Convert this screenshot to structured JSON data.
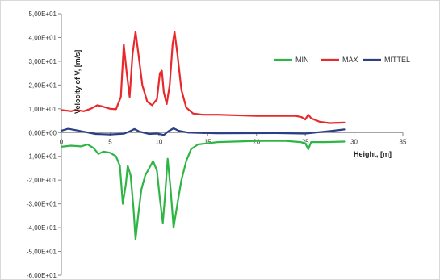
{
  "chart_data": {
    "type": "line",
    "title": "",
    "xlabel": "Height, [m]",
    "ylabel": "Velocity of V, [m/s]",
    "xlim": [
      0,
      35
    ],
    "ylim": [
      -60,
      50
    ],
    "x_ticks": [
      0,
      5,
      10,
      15,
      20,
      25,
      30,
      35
    ],
    "x_tick_labels": [
      "0",
      "5",
      "10",
      "15",
      "20",
      "25",
      "30",
      "35"
    ],
    "y_ticks": [
      50,
      40,
      30,
      20,
      10,
      0,
      -10,
      -20,
      -30,
      -40,
      -50,
      -60
    ],
    "y_tick_labels": [
      "5,00E+01",
      "4,00E+01",
      "3,00E+01",
      "2,00E+01",
      "1,00E+01",
      "0,00E+00",
      "-1,00E+01",
      "-2,00E+01",
      "-3,00E+01",
      "-4,00E+01",
      "-5,00E+01",
      "-6,00E+01"
    ],
    "grid": false,
    "legend_position": "top-right",
    "series": [
      {
        "name": "MIN",
        "color": "#2fb545",
        "points": [
          [
            0,
            -6
          ],
          [
            1,
            -5.5
          ],
          [
            2,
            -5.8
          ],
          [
            2.7,
            -5
          ],
          [
            3.3,
            -6.5
          ],
          [
            3.8,
            -9
          ],
          [
            4.3,
            -8
          ],
          [
            5,
            -8.5
          ],
          [
            5.6,
            -10
          ],
          [
            6,
            -14
          ],
          [
            6.3,
            -30
          ],
          [
            6.6,
            -22
          ],
          [
            6.8,
            -14
          ],
          [
            7.1,
            -18
          ],
          [
            7.4,
            -32
          ],
          [
            7.6,
            -45
          ],
          [
            7.9,
            -34
          ],
          [
            8.2,
            -24
          ],
          [
            8.6,
            -18
          ],
          [
            9,
            -15
          ],
          [
            9.4,
            -12
          ],
          [
            9.8,
            -16
          ],
          [
            10.1,
            -28
          ],
          [
            10.4,
            -38
          ],
          [
            10.6,
            -28
          ],
          [
            10.9,
            -11
          ],
          [
            11.2,
            -24
          ],
          [
            11.5,
            -40
          ],
          [
            11.9,
            -30
          ],
          [
            12.3,
            -20
          ],
          [
            12.8,
            -12
          ],
          [
            13.3,
            -7
          ],
          [
            14,
            -5
          ],
          [
            16,
            -4
          ],
          [
            20,
            -3.5
          ],
          [
            23,
            -3.5
          ],
          [
            24.5,
            -4
          ],
          [
            25,
            -4.5
          ],
          [
            25.3,
            -7
          ],
          [
            25.6,
            -4
          ],
          [
            27,
            -4
          ],
          [
            29,
            -3.8
          ]
        ]
      },
      {
        "name": "MAX",
        "color": "#e8282b",
        "points": [
          [
            0,
            9.5
          ],
          [
            1,
            9
          ],
          [
            1.5,
            9.5
          ],
          [
            2.3,
            9
          ],
          [
            3,
            10
          ],
          [
            3.7,
            11.5
          ],
          [
            4.2,
            11
          ],
          [
            5,
            10
          ],
          [
            5.6,
            9.8
          ],
          [
            6.1,
            15
          ],
          [
            6.4,
            37
          ],
          [
            6.7,
            25
          ],
          [
            7,
            15
          ],
          [
            7.3,
            33
          ],
          [
            7.6,
            42.5
          ],
          [
            7.9,
            33
          ],
          [
            8.3,
            20
          ],
          [
            8.8,
            13
          ],
          [
            9.3,
            11.5
          ],
          [
            9.8,
            14
          ],
          [
            10.1,
            25
          ],
          [
            10.3,
            26
          ],
          [
            10.5,
            17
          ],
          [
            10.8,
            12
          ],
          [
            11.1,
            20
          ],
          [
            11.4,
            37
          ],
          [
            11.6,
            42.5
          ],
          [
            11.9,
            33
          ],
          [
            12.3,
            18
          ],
          [
            12.8,
            10.5
          ],
          [
            13.5,
            8
          ],
          [
            14.5,
            7.5
          ],
          [
            16,
            7.5
          ],
          [
            20,
            7
          ],
          [
            24,
            7
          ],
          [
            24.6,
            6.5
          ],
          [
            25,
            5.5
          ],
          [
            25.3,
            7.5
          ],
          [
            25.6,
            6
          ],
          [
            26.5,
            4.5
          ],
          [
            27.5,
            4
          ],
          [
            29,
            4.2
          ]
        ]
      },
      {
        "name": "MITTEL",
        "color": "#2b3f85",
        "points": [
          [
            0,
            0.8
          ],
          [
            0.7,
            1.6
          ],
          [
            1.5,
            1
          ],
          [
            2.5,
            0.2
          ],
          [
            3.5,
            -0.6
          ],
          [
            5,
            -0.8
          ],
          [
            6.4,
            -0.5
          ],
          [
            6.9,
            0.3
          ],
          [
            7.5,
            1.5
          ],
          [
            8,
            0.4
          ],
          [
            9,
            -0.6
          ],
          [
            9.8,
            -0.4
          ],
          [
            10.5,
            -1
          ],
          [
            11,
            0.6
          ],
          [
            11.5,
            1.8
          ],
          [
            12,
            0.8
          ],
          [
            13,
            0
          ],
          [
            16,
            -0.3
          ],
          [
            22,
            -0.2
          ],
          [
            25,
            -0.4
          ],
          [
            26,
            0
          ],
          [
            27.5,
            0.6
          ],
          [
            29,
            1.3
          ]
        ]
      }
    ]
  }
}
